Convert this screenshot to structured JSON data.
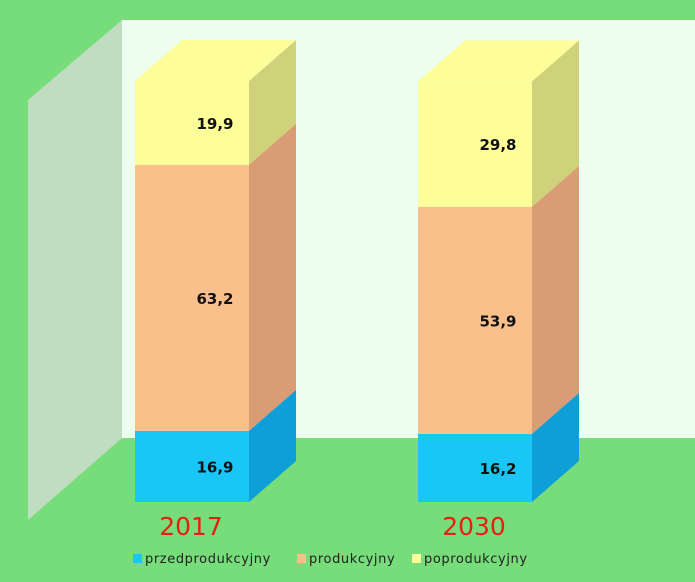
{
  "chart_data": {
    "type": "bar",
    "stacked": true,
    "three_d": true,
    "categories": [
      "2017",
      "2030"
    ],
    "series": [
      {
        "name": "przedprodukcyjny",
        "values": [
          16.9,
          16.2
        ],
        "color": "#19c6f6",
        "side_color": "#0e9fd8",
        "label_text": [
          "16,9",
          "16,2"
        ]
      },
      {
        "name": "produkcyjny",
        "values": [
          63.2,
          53.9
        ],
        "color": "#fbbf8c",
        "side_color": "#d99c74",
        "label_text": [
          "63,2",
          "53,9"
        ]
      },
      {
        "name": "poprodukcyjny",
        "values": [
          19.9,
          29.8
        ],
        "color": "#fdfd9a",
        "side_color": "#cfd27a",
        "label_text": [
          "19,9",
          "29,8"
        ]
      }
    ],
    "ylim": [
      0,
      100
    ],
    "legend_position": "bottom",
    "category_label_color": "#e81e10",
    "wall_color": "#edfdee",
    "side_wall_color": "#c0dcc1",
    "background_color": "#77dd7a"
  }
}
